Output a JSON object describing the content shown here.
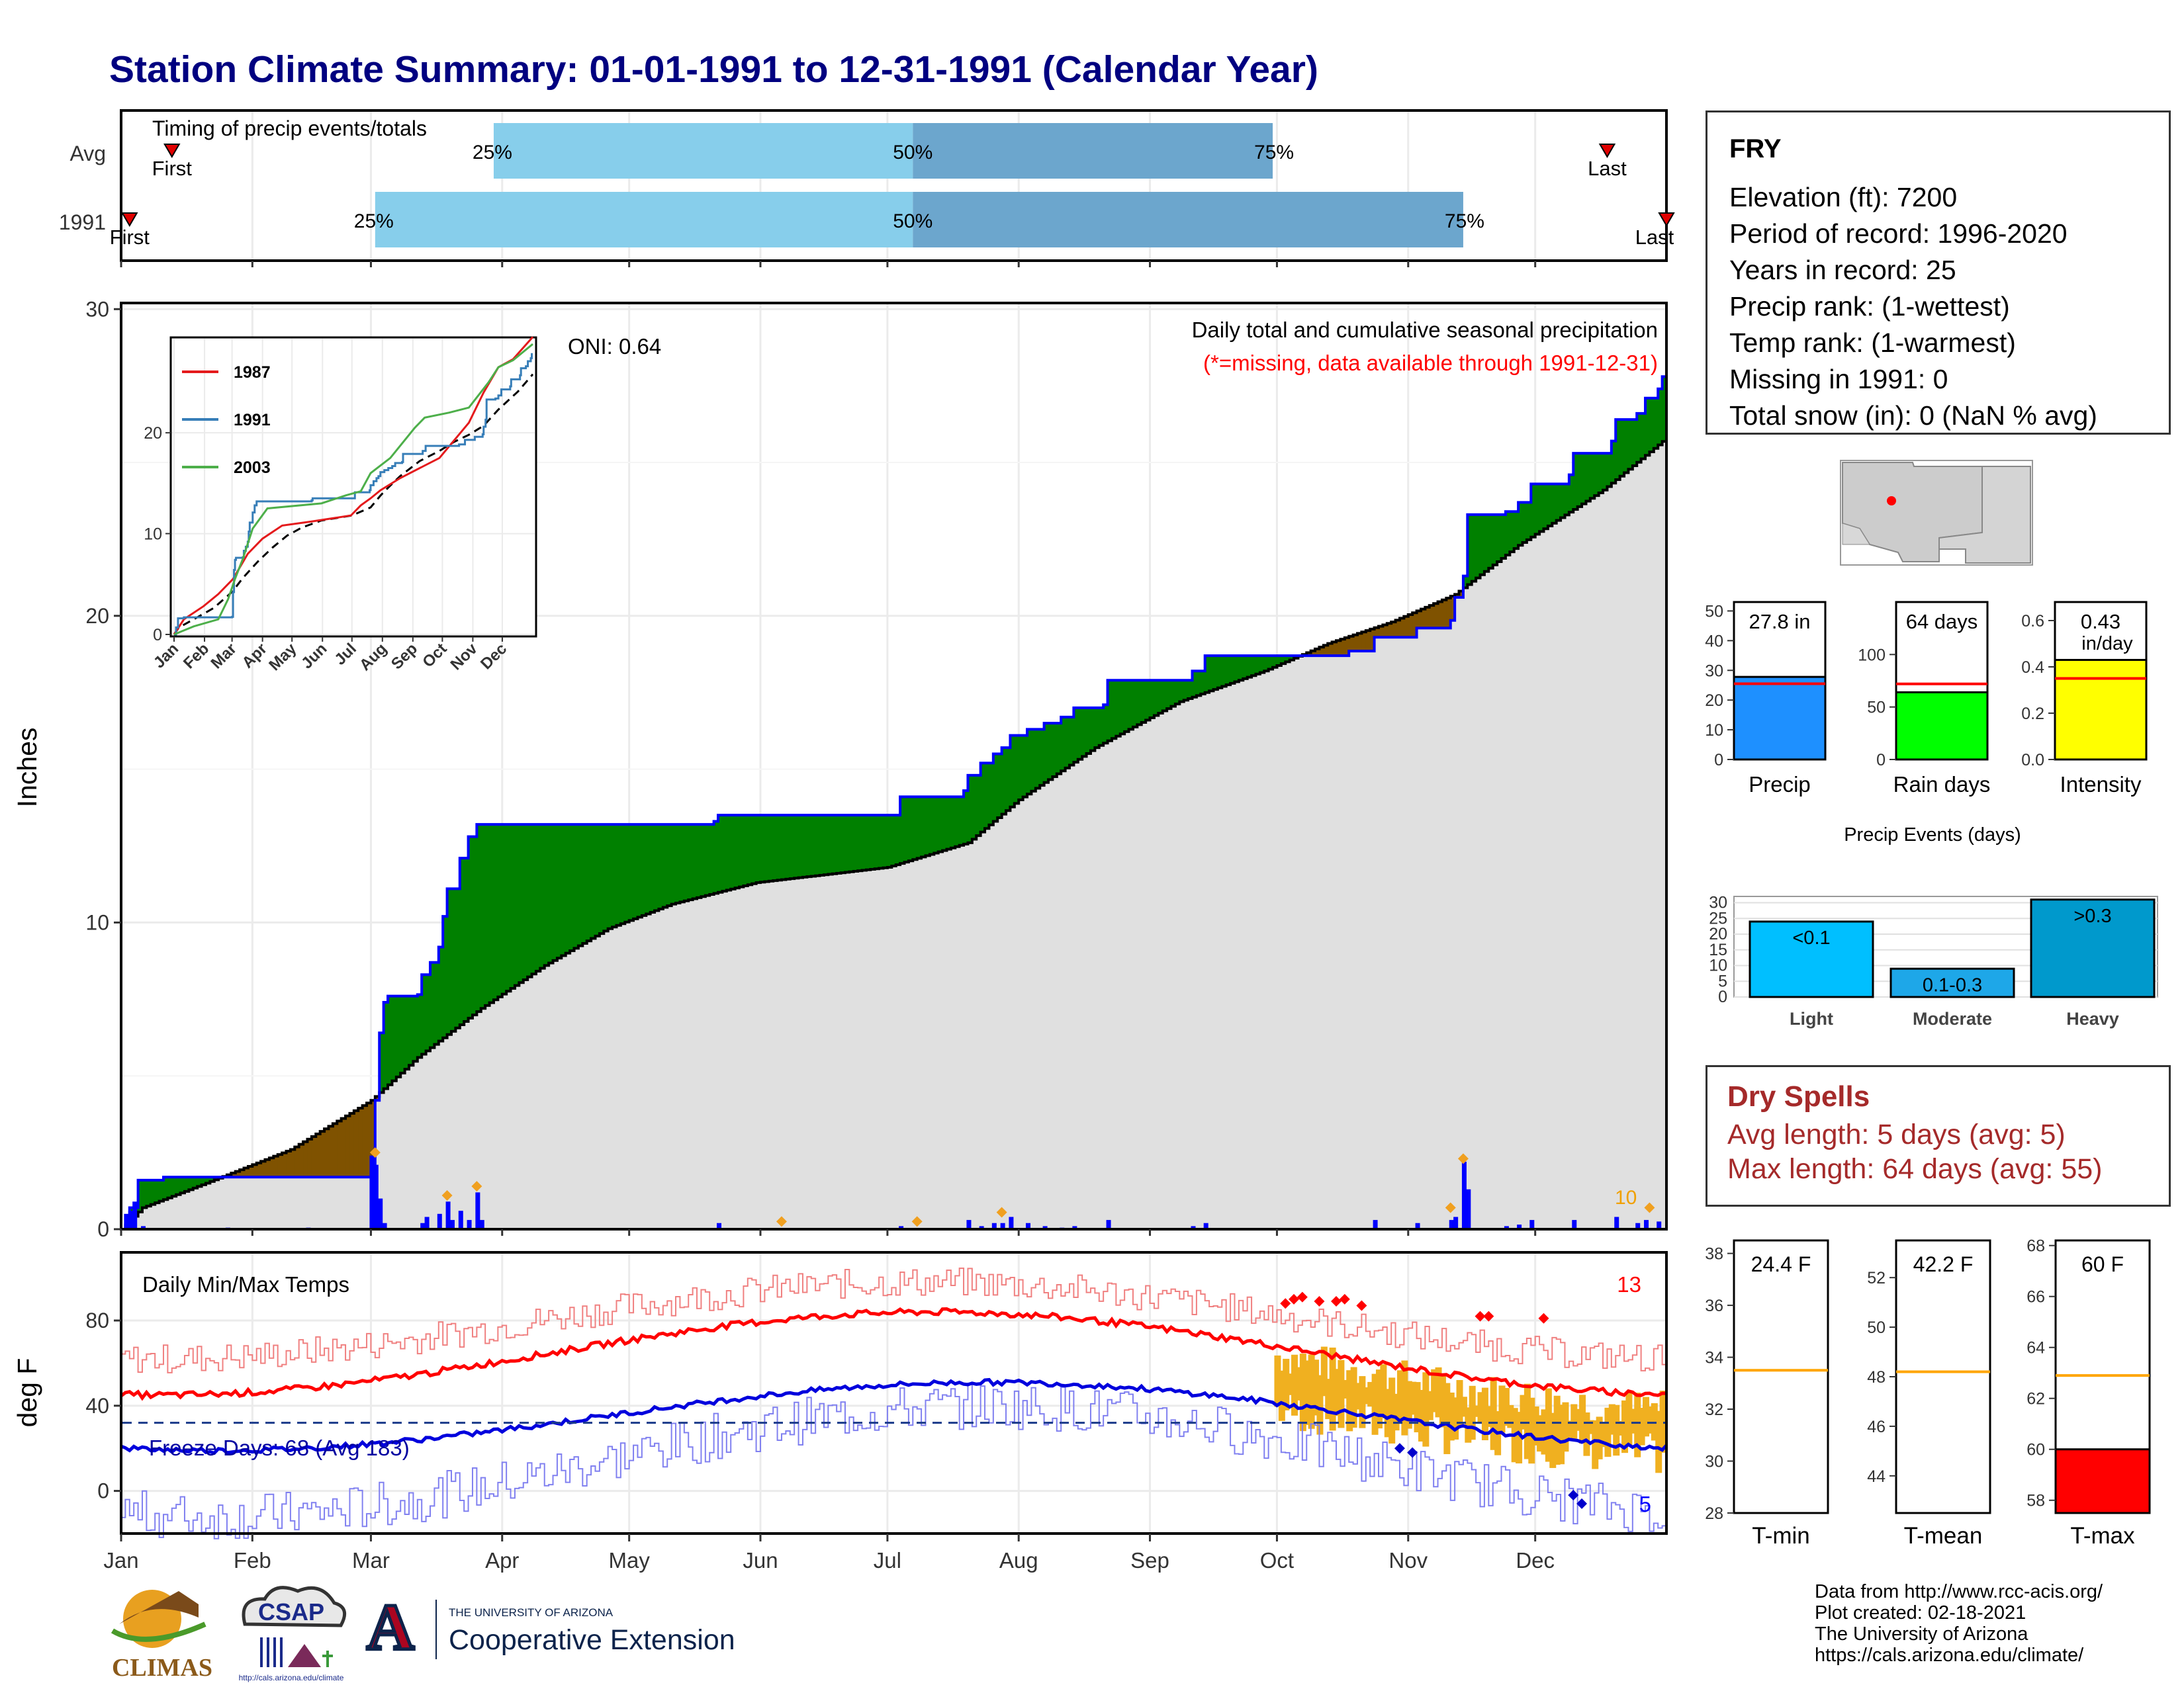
{
  "title": "Station Climate Summary: 01-01-1991 to 12-31-1991 (Calendar Year)",
  "colors": {
    "title": "#000080",
    "light_blue": "#87CEEB",
    "steel_blue": "#6CA6CD",
    "green": "#008000",
    "brown": "#7F5200",
    "gray": "#E0E0E0",
    "red": "#FF0000",
    "blue": "#0000FF",
    "gold": "#F0B020",
    "dry_red": "#A52A2A"
  },
  "timing": {
    "title": "Timing of precip events/totals",
    "rows": [
      {
        "label": "Avg",
        "first": "First",
        "last": "Last",
        "q25": "25%",
        "q50": "50%",
        "q75": "75%",
        "d_first": 12,
        "d25": 88,
        "d50": 187,
        "d75": 272,
        "d_last": 351
      },
      {
        "label": "1991",
        "first": "First",
        "last": "Last",
        "q25": "25%",
        "q50": "50%",
        "q75": "75%",
        "d_first": 2,
        "d25": 60,
        "d50": 187,
        "d75": 317,
        "d_last": 365
      }
    ]
  },
  "precip_panel": {
    "ylabel": "Inches",
    "yticks": [
      "0",
      "10",
      "20",
      "30"
    ],
    "title": "Daily total and cumulative seasonal precipitation",
    "subtitle": "(*=missing, data available through 1991-12-31)",
    "oni": "ONI: 0.64",
    "count_label": "10"
  },
  "inset": {
    "series": [
      "1987",
      "1991",
      "2003"
    ],
    "series_colors": [
      "#E41A1C",
      "#377EB8",
      "#4DAF4A"
    ],
    "yticks": [
      "0",
      "10",
      "20"
    ],
    "months": [
      "Jan",
      "Feb",
      "Mar",
      "Apr",
      "May",
      "Jun",
      "Jul",
      "Aug",
      "Sep",
      "Oct",
      "Nov",
      "Dec"
    ]
  },
  "temp_panel": {
    "ylabel": "deg F",
    "title": "Daily Min/Max Temps",
    "yticks": [
      "0",
      "40",
      "80"
    ],
    "freeze": "Freeze Days: 68 (Avg 183)",
    "hot_count": "13",
    "cold_count": "5"
  },
  "months": [
    "Jan",
    "Feb",
    "Mar",
    "Apr",
    "May",
    "Jun",
    "Jul",
    "Aug",
    "Sep",
    "Oct",
    "Nov",
    "Dec"
  ],
  "station": {
    "name": "FRY",
    "lines": [
      "Elevation (ft): 7200",
      "Period of record: 1996-2020",
      "Years in record: 25",
      "Precip rank:  (1-wettest)",
      "Temp rank:  (1-warmest)",
      "Missing in 1991: 0",
      "Total snow (in): 0 (NaN % avg)"
    ]
  },
  "summary_bars": [
    {
      "label": "Precip",
      "value_text": "27.8 in",
      "value": 27.8,
      "avg": 25.5,
      "ymax": 53,
      "yticks": [
        "0",
        "10",
        "20",
        "30",
        "40",
        "50"
      ],
      "color": "#1E90FF"
    },
    {
      "label": "Rain days",
      "value_text": "64 days",
      "value": 64,
      "avg": 72,
      "ymax": 150,
      "yticks": [
        "0",
        "50",
        "100"
      ],
      "color": "#00FF00"
    },
    {
      "label": "Intensity",
      "value_text": "0.43",
      "value_sub": "in/day",
      "value": 0.43,
      "avg": 0.35,
      "ymax": 0.68,
      "yticks": [
        "0.0",
        "0.2",
        "0.4",
        "0.6"
      ],
      "color": "#FFFF00"
    }
  ],
  "events": {
    "title": "Precip Events (days)",
    "yticks": [
      "0",
      "5",
      "10",
      "15",
      "20",
      "25",
      "30"
    ],
    "categories": [
      "Light",
      "Moderate",
      "Heavy"
    ],
    "labels": [
      "<0.1",
      "0.1-0.3",
      ">0.3"
    ],
    "values": [
      24,
      9,
      31
    ],
    "colors": [
      "#00BFFF",
      "#1EA7E8",
      "#0099CC"
    ]
  },
  "dry_spells": {
    "title": "Dry Spells",
    "avg": "Avg length: 5 days (avg: 5)",
    "max": "Max length: 64 days (avg: 55)"
  },
  "temp_bars": [
    {
      "label": "T-min",
      "value_text": "24.4 F",
      "value": 24.4,
      "avg": 33.5,
      "ymin": 28,
      "ymax": 38.5,
      "yticks": [
        "28",
        "30",
        "32",
        "34",
        "36",
        "38"
      ]
    },
    {
      "label": "T-mean",
      "value_text": "42.2 F",
      "value": 42.2,
      "avg": 48.2,
      "ymin": 42.5,
      "ymax": 53.5,
      "yticks": [
        "44",
        "46",
        "48",
        "50",
        "52"
      ]
    },
    {
      "label": "T-max",
      "value_text": "60 F",
      "value": 60,
      "avg": 62.9,
      "ymin": 57.5,
      "ymax": 68.2,
      "yticks": [
        "58",
        "60",
        "62",
        "64",
        "66",
        "68"
      ]
    }
  ],
  "footer": {
    "lines": [
      "Data from http://www.rcc-acis.org/",
      "Plot created: 02-18-2021",
      "The University of Arizona",
      "https://cals.arizona.edu/climate/"
    ]
  },
  "logos": {
    "climas": "CLIMAS",
    "csap": "CSAP",
    "csap_url": "http://cals.arizona.edu/climate",
    "ua_small": "THE UNIVERSITY OF ARIZONA",
    "ua_big": "Cooperative Extension",
    "ua_letter": "A"
  }
}
